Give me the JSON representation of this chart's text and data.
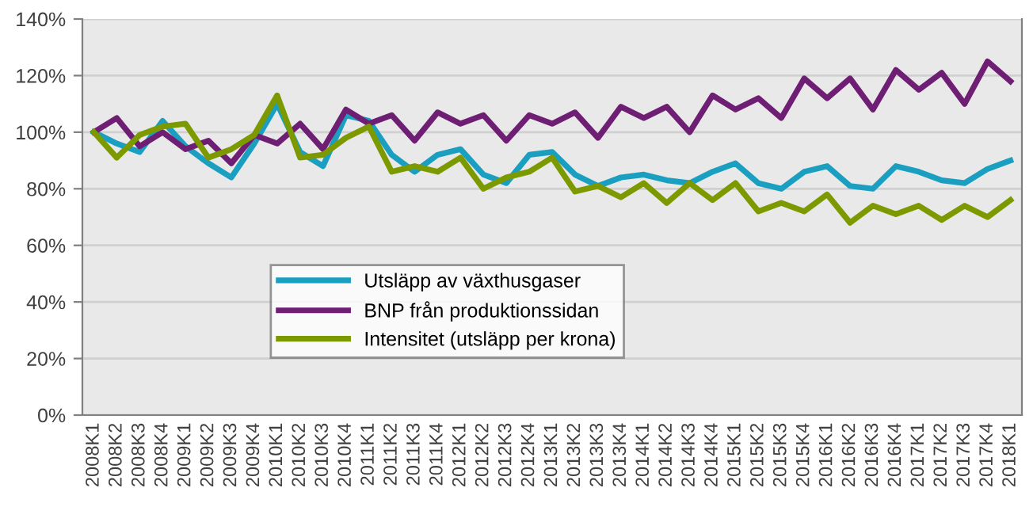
{
  "chart_data": {
    "type": "line",
    "categories": [
      "2008K1",
      "2008K2",
      "2008K3",
      "2008K4",
      "2009K1",
      "2009K2",
      "2009K3",
      "2009K4",
      "2010K1",
      "2010K2",
      "2010K3",
      "2010K4",
      "2011K1",
      "2011K2",
      "2011K3",
      "2011K4",
      "2012K1",
      "2012K2",
      "2012K3",
      "2012K4",
      "2013K1",
      "2013K2",
      "2013K3",
      "2013K4",
      "2014K1",
      "2014K2",
      "2014K3",
      "2014K4",
      "2015K1",
      "2015K2",
      "2015K3",
      "2015K4",
      "2016K1",
      "2016K2",
      "2016K3",
      "2016K4",
      "2017K1",
      "2017K2",
      "2017K3",
      "2017K4",
      "2018K1"
    ],
    "series": [
      {
        "name": "Utsläpp av växthusgaser",
        "color": "#1a9fc0",
        "values": [
          100,
          96,
          93,
          104,
          95,
          89,
          84,
          96,
          110,
          93,
          88,
          106,
          104,
          92,
          86,
          92,
          94,
          85,
          82,
          92,
          93,
          85,
          81,
          84,
          85,
          83,
          82,
          86,
          89,
          82,
          80,
          86,
          88,
          81,
          80,
          88,
          86,
          83,
          82,
          87,
          90
        ]
      },
      {
        "name": "BNP från produktionssidan",
        "color": "#6e1f73",
        "values": [
          100,
          105,
          95,
          100,
          94,
          97,
          89,
          99,
          96,
          103,
          94,
          108,
          103,
          106,
          97,
          107,
          103,
          106,
          97,
          106,
          103,
          107,
          98,
          109,
          105,
          109,
          100,
          113,
          108,
          112,
          105,
          119,
          112,
          119,
          108,
          122,
          115,
          121,
          110,
          125,
          118
        ]
      },
      {
        "name": "Intensitet (utsläpp per krona)",
        "color": "#7c9a00",
        "values": [
          100,
          91,
          99,
          102,
          103,
          91,
          94,
          99,
          113,
          91,
          92,
          98,
          102,
          86,
          88,
          86,
          91,
          80,
          84,
          86,
          91,
          79,
          81,
          77,
          82,
          75,
          82,
          76,
          82,
          72,
          75,
          72,
          78,
          68,
          74,
          71,
          74,
          69,
          74,
          70,
          76
        ]
      }
    ],
    "ylim": [
      0,
      140
    ],
    "yticks": [
      {
        "value": 0,
        "label": "0%"
      },
      {
        "value": 20,
        "label": "20%"
      },
      {
        "value": 40,
        "label": "40%"
      },
      {
        "value": 60,
        "label": "60%"
      },
      {
        "value": 80,
        "label": "80%"
      },
      {
        "value": 100,
        "label": "100%"
      },
      {
        "value": 120,
        "label": "120%"
      },
      {
        "value": 140,
        "label": "140%"
      }
    ],
    "grid": "y",
    "legend": "bottom left",
    "marker": "none",
    "line_style": "solid"
  }
}
